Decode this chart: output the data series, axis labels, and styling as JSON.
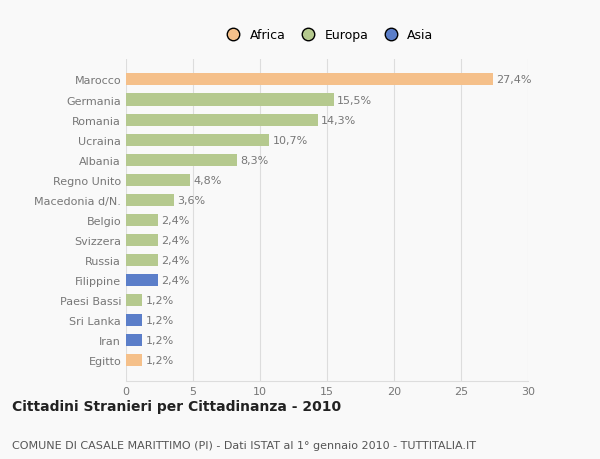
{
  "categories": [
    "Marocco",
    "Germania",
    "Romania",
    "Ucraina",
    "Albania",
    "Regno Unito",
    "Macedonia d/N.",
    "Belgio",
    "Svizzera",
    "Russia",
    "Filippine",
    "Paesi Bassi",
    "Sri Lanka",
    "Iran",
    "Egitto"
  ],
  "values": [
    27.4,
    15.5,
    14.3,
    10.7,
    8.3,
    4.8,
    3.6,
    2.4,
    2.4,
    2.4,
    2.4,
    1.2,
    1.2,
    1.2,
    1.2
  ],
  "labels": [
    "27,4%",
    "15,5%",
    "14,3%",
    "10,7%",
    "8,3%",
    "4,8%",
    "3,6%",
    "2,4%",
    "2,4%",
    "2,4%",
    "2,4%",
    "1,2%",
    "1,2%",
    "1,2%",
    "1,2%"
  ],
  "colors": [
    "#f5c08a",
    "#b5c98e",
    "#b5c98e",
    "#b5c98e",
    "#b5c98e",
    "#b5c98e",
    "#b5c98e",
    "#b5c98e",
    "#b5c98e",
    "#b5c98e",
    "#5b7ec9",
    "#b5c98e",
    "#5b7ec9",
    "#5b7ec9",
    "#f5c08a"
  ],
  "legend_labels": [
    "Africa",
    "Europa",
    "Asia"
  ],
  "legend_colors": [
    "#f5c08a",
    "#b5c98e",
    "#5b7ec9"
  ],
  "xlim": [
    0,
    30
  ],
  "xticks": [
    0,
    5,
    10,
    15,
    20,
    25,
    30
  ],
  "title": "Cittadini Stranieri per Cittadinanza - 2010",
  "subtitle": "COMUNE DI CASALE MARITTIMO (PI) - Dati ISTAT al 1° gennaio 2010 - TUTTITALIA.IT",
  "bg_color": "#f9f9f9",
  "grid_color": "#dddddd",
  "bar_height": 0.6,
  "title_fontsize": 10,
  "subtitle_fontsize": 8,
  "label_fontsize": 8,
  "tick_fontsize": 8,
  "axis_label_color": "#777777"
}
